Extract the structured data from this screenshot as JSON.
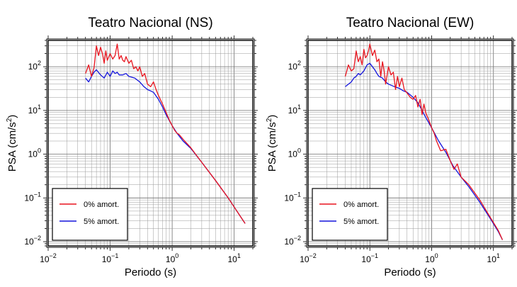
{
  "chart_data": [
    {
      "type": "line",
      "title": "Teatro Nacional (NS)",
      "xlabel": "Periodo (s)",
      "ylabel": "PSA (cm/s²)",
      "ylabel_parts": {
        "main": "PSA (cm/s",
        "sup": "2",
        "end": ")"
      },
      "xscale": "log",
      "yscale": "log",
      "xlim": [
        0.01,
        20
      ],
      "ylim": [
        0.008,
        400
      ],
      "xticks": [
        {
          "base": "10",
          "exp": "−2"
        },
        {
          "base": "10",
          "exp": "−1"
        },
        {
          "base": "10",
          "exp": "0"
        },
        {
          "base": "10",
          "exp": "1"
        }
      ],
      "yticks": [
        {
          "base": "10",
          "exp": "−2"
        },
        {
          "base": "10",
          "exp": "−1"
        },
        {
          "base": "10",
          "exp": "0"
        },
        {
          "base": "10",
          "exp": "1"
        },
        {
          "base": "10",
          "exp": "2"
        }
      ],
      "grid": true,
      "legend_position": "bottom-left",
      "series": [
        {
          "name": "0% amort.",
          "color": "#e8141e",
          "x": [
            0.04,
            0.045,
            0.05,
            0.055,
            0.06,
            0.065,
            0.07,
            0.075,
            0.08,
            0.085,
            0.09,
            0.1,
            0.11,
            0.12,
            0.13,
            0.14,
            0.15,
            0.16,
            0.17,
            0.18,
            0.2,
            0.22,
            0.24,
            0.26,
            0.28,
            0.3,
            0.33,
            0.36,
            0.4,
            0.45,
            0.5,
            0.55,
            0.6,
            0.7,
            0.8,
            0.9,
            1.0,
            1.1,
            1.2,
            1.3,
            1.5,
            2,
            3,
            5,
            8,
            12,
            15
          ],
          "y": [
            70,
            110,
            60,
            95,
            300,
            180,
            280,
            200,
            120,
            230,
            140,
            200,
            150,
            180,
            330,
            150,
            180,
            140,
            130,
            170,
            120,
            140,
            90,
            100,
            80,
            100,
            60,
            70,
            40,
            35,
            45,
            30,
            22,
            14,
            9,
            6,
            4.5,
            3.5,
            3,
            2.8,
            2.2,
            1.4,
            0.65,
            0.25,
            0.1,
            0.042,
            0.026
          ]
        },
        {
          "name": "5% amort.",
          "color": "#1414dc",
          "x": [
            0.04,
            0.045,
            0.05,
            0.055,
            0.06,
            0.07,
            0.08,
            0.09,
            0.1,
            0.11,
            0.12,
            0.13,
            0.14,
            0.16,
            0.18,
            0.2,
            0.25,
            0.3,
            0.35,
            0.4,
            0.45,
            0.5,
            0.6,
            0.7,
            0.8,
            1.0,
            1.2,
            1.5,
            2,
            3,
            5,
            8,
            12,
            15
          ],
          "y": [
            55,
            45,
            60,
            75,
            85,
            65,
            55,
            75,
            60,
            80,
            70,
            75,
            65,
            65,
            70,
            60,
            55,
            45,
            35,
            30,
            28,
            26,
            18,
            12,
            8,
            4.5,
            3,
            2,
            1.35,
            0.65,
            0.25,
            0.1,
            0.042,
            0.026
          ]
        }
      ]
    },
    {
      "type": "line",
      "title": "Teatro Nacional (EW)",
      "xlabel": "Periodo (s)",
      "ylabel": "PSA (cm/s²)",
      "ylabel_parts": {
        "main": "PSA (cm/s",
        "sup": "2",
        "end": ")"
      },
      "xscale": "log",
      "yscale": "log",
      "xlim": [
        0.01,
        20
      ],
      "ylim": [
        0.008,
        400
      ],
      "xticks": [
        {
          "base": "10",
          "exp": "−2"
        },
        {
          "base": "10",
          "exp": "−1"
        },
        {
          "base": "10",
          "exp": "0"
        },
        {
          "base": "10",
          "exp": "1"
        }
      ],
      "yticks": [
        {
          "base": "10",
          "exp": "−2"
        },
        {
          "base": "10",
          "exp": "−1"
        },
        {
          "base": "10",
          "exp": "0"
        },
        {
          "base": "10",
          "exp": "1"
        },
        {
          "base": "10",
          "exp": "2"
        }
      ],
      "grid": true,
      "legend_position": "bottom-left",
      "series": [
        {
          "name": "0% amort.",
          "color": "#e8141e",
          "x": [
            0.04,
            0.045,
            0.05,
            0.055,
            0.06,
            0.065,
            0.07,
            0.075,
            0.08,
            0.085,
            0.09,
            0.095,
            0.1,
            0.11,
            0.12,
            0.13,
            0.14,
            0.15,
            0.16,
            0.17,
            0.18,
            0.2,
            0.22,
            0.24,
            0.26,
            0.28,
            0.3,
            0.33,
            0.36,
            0.4,
            0.45,
            0.5,
            0.55,
            0.6,
            0.65,
            0.7,
            0.75,
            0.8,
            0.9,
            1.0,
            1.1,
            1.2,
            1.4,
            1.7,
            2.0,
            2.3,
            2.6,
            3,
            4,
            6,
            9,
            12,
            14
          ],
          "y": [
            60,
            110,
            80,
            90,
            230,
            130,
            170,
            110,
            250,
            160,
            180,
            230,
            330,
            180,
            240,
            130,
            150,
            60,
            130,
            80,
            40,
            100,
            65,
            75,
            30,
            60,
            35,
            55,
            30,
            25,
            20,
            18,
            22,
            12,
            18,
            8,
            14,
            9,
            6,
            4,
            3,
            2,
            1.2,
            1.3,
            0.7,
            0.45,
            0.6,
            0.3,
            0.2,
            0.09,
            0.035,
            0.018,
            0.011
          ]
        },
        {
          "name": "5% amort.",
          "color": "#1414dc",
          "x": [
            0.04,
            0.045,
            0.05,
            0.055,
            0.06,
            0.065,
            0.07,
            0.08,
            0.09,
            0.1,
            0.11,
            0.12,
            0.13,
            0.14,
            0.16,
            0.18,
            0.2,
            0.25,
            0.3,
            0.35,
            0.4,
            0.5,
            0.6,
            0.7,
            0.8,
            1.0,
            1.3,
            1.7,
            2.2,
            3,
            4,
            6,
            9,
            12,
            14
          ],
          "y": [
            35,
            40,
            45,
            55,
            60,
            70,
            65,
            80,
            110,
            120,
            100,
            85,
            70,
            60,
            55,
            45,
            40,
            35,
            32,
            28,
            26,
            20,
            15,
            10,
            7,
            4,
            2,
            1.1,
            0.55,
            0.3,
            0.18,
            0.08,
            0.033,
            0.017,
            0.011
          ]
        }
      ]
    }
  ]
}
